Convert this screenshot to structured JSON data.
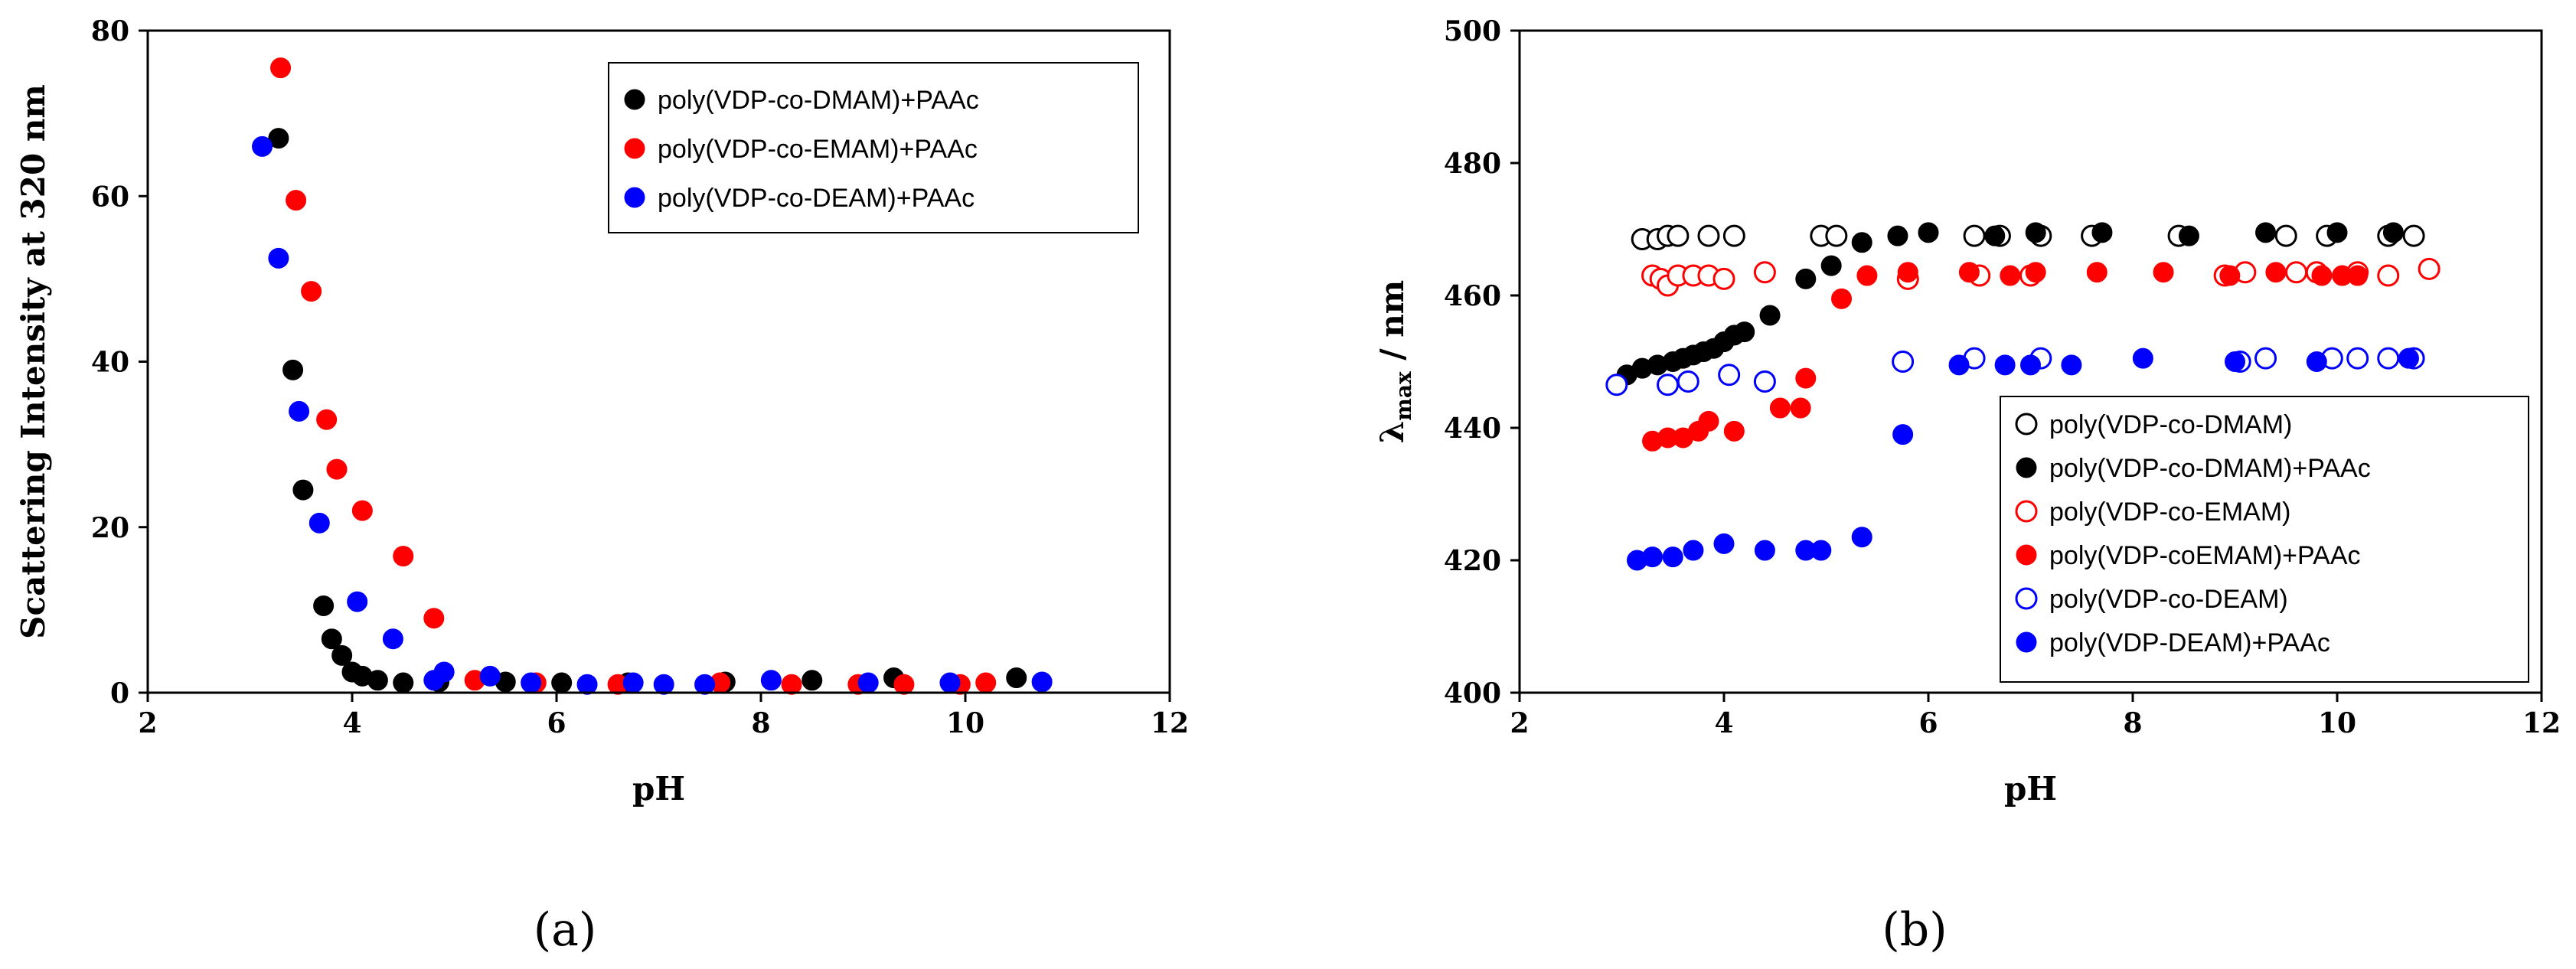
{
  "panels": {
    "a": {
      "label": "(a)"
    },
    "b": {
      "label": "(b)"
    }
  },
  "chart_data": [
    {
      "id": "a",
      "type": "scatter",
      "xlabel": "pH",
      "ylabel": "Scattering Intensity at 320 nm",
      "xlim": [
        2,
        12
      ],
      "ylim": [
        0,
        80
      ],
      "xticks": [
        2,
        4,
        6,
        8,
        10,
        12
      ],
      "yticks": [
        0,
        20,
        40,
        60,
        80
      ],
      "legend_position": "top-right",
      "series": [
        {
          "name": "poly(VDP-co-DMAM)+PAAc",
          "color": "#000000",
          "marker": "filled",
          "x": [
            3.28,
            3.42,
            3.52,
            3.72,
            3.8,
            3.9,
            4.0,
            4.1,
            4.25,
            4.5,
            4.85,
            5.5,
            6.05,
            6.7,
            7.65,
            8.5,
            9.3,
            10.5
          ],
          "y": [
            67,
            39,
            24.5,
            10.5,
            6.5,
            4.5,
            2.5,
            2,
            1.5,
            1.2,
            1.3,
            1.3,
            1.2,
            1.2,
            1.3,
            1.5,
            1.8,
            1.8
          ]
        },
        {
          "name": "poly(VDP-co-EMAM)+PAAc",
          "color": "#ff0000",
          "marker": "filled",
          "x": [
            3.3,
            3.45,
            3.6,
            3.75,
            3.85,
            4.1,
            4.5,
            4.8,
            5.2,
            5.8,
            6.6,
            7.6,
            8.3,
            8.95,
            9.4,
            9.95,
            10.2
          ],
          "y": [
            75.5,
            59.5,
            48.5,
            33,
            27,
            22,
            16.5,
            9,
            1.5,
            1.2,
            1,
            1.2,
            1,
            1,
            1,
            1,
            1.2
          ]
        },
        {
          "name": "poly(VDP-co-DEAM)+PAAc",
          "color": "#0000ff",
          "marker": "filled",
          "x": [
            3.12,
            3.28,
            3.48,
            3.68,
            4.05,
            4.4,
            4.8,
            4.9,
            5.35,
            5.75,
            6.3,
            6.75,
            7.05,
            7.45,
            8.1,
            9.05,
            9.85,
            10.75
          ],
          "y": [
            66,
            52.5,
            34,
            20.5,
            11,
            6.5,
            1.5,
            2.5,
            2,
            1.2,
            1,
            1.2,
            1,
            1,
            1.5,
            1.2,
            1.2,
            1.3
          ]
        }
      ]
    },
    {
      "id": "b",
      "type": "scatter",
      "xlabel": "pH",
      "ylabel": "λ",
      "ylabel_subscript": "max",
      "ylabel_unit": " / nm",
      "xlim": [
        2,
        12
      ],
      "ylim": [
        400,
        500
      ],
      "xticks": [
        2,
        4,
        6,
        8,
        10,
        12
      ],
      "yticks": [
        400,
        420,
        440,
        460,
        480,
        500
      ],
      "legend_position": "bottom-right",
      "series": [
        {
          "name": "poly(VDP-co-DMAM)",
          "color": "#000000",
          "marker": "open",
          "x": [
            3.2,
            3.35,
            3.45,
            3.55,
            3.85,
            4.1,
            4.95,
            5.1,
            6.45,
            6.7,
            7.1,
            7.6,
            8.45,
            9.5,
            9.9,
            10.5,
            10.75
          ],
          "y": [
            468.5,
            468.5,
            469,
            469,
            469,
            469,
            469,
            469,
            469,
            469,
            469,
            469,
            469,
            469,
            469,
            469,
            469
          ]
        },
        {
          "name": "poly(VDP-co-DMAM)+PAAc",
          "color": "#000000",
          "marker": "filled",
          "x": [
            3.05,
            3.2,
            3.35,
            3.5,
            3.6,
            3.7,
            3.8,
            3.9,
            4.0,
            4.1,
            4.2,
            4.45,
            4.8,
            5.05,
            5.35,
            5.7,
            6.0,
            6.65,
            7.05,
            7.7,
            8.55,
            9.3,
            10.0,
            10.55
          ],
          "y": [
            448,
            449,
            449.5,
            450,
            450.5,
            451,
            451.5,
            452,
            453,
            454,
            454.5,
            457,
            462.5,
            464.5,
            468,
            469,
            469.5,
            469,
            469.5,
            469.5,
            469,
            469.5,
            469.5,
            469.5
          ]
        },
        {
          "name": "poly(VDP-co-EMAM)",
          "color": "#ff0000",
          "marker": "open",
          "x": [
            3.3,
            3.38,
            3.45,
            3.55,
            3.7,
            3.85,
            4.0,
            4.4,
            5.8,
            6.5,
            7.0,
            8.9,
            9.1,
            9.6,
            9.8,
            10.2,
            10.5,
            10.9
          ],
          "y": [
            463,
            462.5,
            461.5,
            463,
            463,
            463,
            462.5,
            463.5,
            462.5,
            463,
            463,
            463,
            463.5,
            463.5,
            463.5,
            463.5,
            463,
            464
          ]
        },
        {
          "name": "poly(VDP-coEMAM)+PAAc",
          "color": "#ff0000",
          "marker": "filled",
          "x": [
            3.3,
            3.45,
            3.6,
            3.75,
            3.85,
            4.1,
            4.55,
            4.75,
            4.8,
            5.15,
            5.4,
            5.8,
            6.4,
            6.8,
            7.05,
            7.65,
            8.3,
            8.95,
            9.4,
            9.85,
            10.05,
            10.2
          ],
          "y": [
            438,
            438.5,
            438.5,
            439.5,
            441,
            439.5,
            443,
            443,
            447.5,
            459.5,
            463,
            463.5,
            463.5,
            463,
            463.5,
            463.5,
            463.5,
            463,
            463.5,
            463,
            463,
            463
          ]
        },
        {
          "name": "poly(VDP-co-DEAM)",
          "color": "#0000ff",
          "marker": "open",
          "x": [
            2.95,
            3.45,
            3.65,
            4.05,
            4.4,
            5.75,
            6.45,
            7.1,
            9.05,
            9.3,
            9.95,
            10.2,
            10.5,
            10.75
          ],
          "y": [
            446.5,
            446.5,
            447,
            448,
            447,
            450,
            450.5,
            450.5,
            450,
            450.5,
            450.5,
            450.5,
            450.5,
            450.5
          ]
        },
        {
          "name": "poly(VDP-DEAM)+PAAc",
          "color": "#0000ff",
          "marker": "filled",
          "x": [
            3.15,
            3.3,
            3.5,
            3.7,
            4.0,
            4.4,
            4.8,
            4.95,
            5.35,
            5.75,
            6.3,
            6.75,
            7.0,
            7.4,
            8.1,
            9.0,
            9.8,
            10.7
          ],
          "y": [
            420,
            420.5,
            420.5,
            421.5,
            422.5,
            421.5,
            421.5,
            421.5,
            423.5,
            439,
            449.5,
            449.5,
            449.5,
            449.5,
            450.5,
            450,
            450,
            450.5
          ]
        }
      ]
    }
  ]
}
